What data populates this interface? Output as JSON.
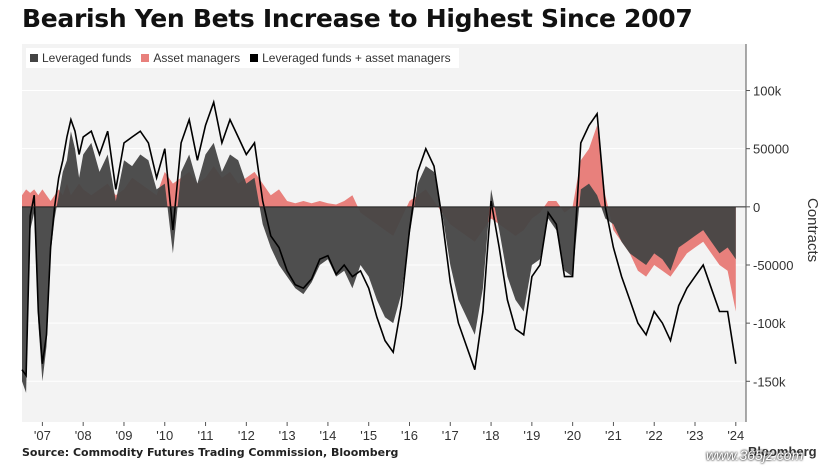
{
  "chart_data": {
    "type": "area",
    "title": "Bearish Yen Bets Increase to Highest Since 2007",
    "ylabel": "Contracts",
    "ylim": [
      -185000,
      140000
    ],
    "xlim": [
      2006.5,
      2024.25
    ],
    "yticks": [
      100000,
      50000,
      0,
      -50000,
      -100000,
      -150000
    ],
    "ytick_labels": [
      "100k",
      "50000",
      "0",
      "-50000",
      "-100k",
      "-150k"
    ],
    "xticks": [
      2007,
      2008,
      2009,
      2010,
      2011,
      2012,
      2013,
      2014,
      2015,
      2016,
      2017,
      2018,
      2019,
      2020,
      2021,
      2022,
      2023,
      2024
    ],
    "xtick_labels": [
      "'07",
      "'08",
      "'09",
      "'10",
      "'11",
      "'12",
      "'13",
      "'14",
      "'15",
      "'16",
      "'17",
      "'18",
      "'19",
      "'20",
      "'21",
      "'22",
      "'23",
      "'24"
    ],
    "legend_position": "top-left",
    "grid": true,
    "x": [
      2006.5,
      2006.6,
      2006.7,
      2006.8,
      2006.9,
      2007.0,
      2007.1,
      2007.2,
      2007.3,
      2007.4,
      2007.5,
      2007.6,
      2007.7,
      2007.8,
      2007.9,
      2008.0,
      2008.2,
      2008.4,
      2008.6,
      2008.8,
      2009.0,
      2009.2,
      2009.4,
      2009.6,
      2009.8,
      2010.0,
      2010.2,
      2010.4,
      2010.6,
      2010.8,
      2011.0,
      2011.2,
      2011.4,
      2011.6,
      2011.8,
      2012.0,
      2012.2,
      2012.4,
      2012.6,
      2012.8,
      2013.0,
      2013.2,
      2013.4,
      2013.6,
      2013.8,
      2014.0,
      2014.2,
      2014.4,
      2014.6,
      2014.8,
      2015.0,
      2015.2,
      2015.4,
      2015.6,
      2015.8,
      2016.0,
      2016.2,
      2016.4,
      2016.6,
      2016.8,
      2017.0,
      2017.2,
      2017.4,
      2017.6,
      2017.8,
      2018.0,
      2018.2,
      2018.4,
      2018.6,
      2018.8,
      2019.0,
      2019.2,
      2019.4,
      2019.6,
      2019.8,
      2020.0,
      2020.2,
      2020.4,
      2020.6,
      2020.8,
      2021.0,
      2021.2,
      2021.4,
      2021.6,
      2021.8,
      2022.0,
      2022.2,
      2022.4,
      2022.6,
      2022.8,
      2023.0,
      2023.2,
      2023.4,
      2023.6,
      2023.8,
      2024.0
    ],
    "series": [
      {
        "name": "Leveraged funds",
        "color": "#444444",
        "values": [
          -150000,
          -160000,
          -20000,
          -5000,
          -100000,
          -150000,
          -120000,
          -40000,
          -10000,
          10000,
          30000,
          40000,
          65000,
          50000,
          25000,
          45000,
          55000,
          30000,
          45000,
          5000,
          40000,
          35000,
          45000,
          40000,
          15000,
          20000,
          -40000,
          30000,
          45000,
          20000,
          45000,
          55000,
          30000,
          45000,
          40000,
          20000,
          25000,
          -15000,
          -35000,
          -50000,
          -60000,
          -70000,
          -75000,
          -65000,
          -50000,
          -45000,
          -60000,
          -55000,
          -70000,
          -50000,
          -60000,
          -80000,
          -95000,
          -100000,
          -75000,
          -25000,
          20000,
          35000,
          30000,
          -5000,
          -50000,
          -80000,
          -95000,
          -110000,
          -70000,
          15000,
          -20000,
          -60000,
          -80000,
          -90000,
          -50000,
          -45000,
          -10000,
          -20000,
          -55000,
          -60000,
          15000,
          20000,
          10000,
          -10000,
          -15000,
          -30000,
          -40000,
          -45000,
          -50000,
          -40000,
          -45000,
          -55000,
          -35000,
          -30000,
          -25000,
          -20000,
          -30000,
          -40000,
          -35000,
          -45000
        ]
      },
      {
        "name": "Asset managers",
        "color": "#e8807c",
        "values": [
          10000,
          15000,
          12000,
          15000,
          10000,
          15000,
          10000,
          5000,
          10000,
          15000,
          10000,
          20000,
          10000,
          15000,
          20000,
          15000,
          10000,
          15000,
          20000,
          10000,
          15000,
          25000,
          20000,
          15000,
          10000,
          30000,
          20000,
          25000,
          30000,
          20000,
          25000,
          35000,
          25000,
          30000,
          20000,
          25000,
          30000,
          20000,
          10000,
          15000,
          5000,
          3000,
          5000,
          3000,
          5000,
          3000,
          2000,
          5000,
          10000,
          -5000,
          -10000,
          -15000,
          -20000,
          -25000,
          -10000,
          5000,
          10000,
          15000,
          5000,
          -5000,
          -15000,
          -20000,
          -25000,
          -30000,
          -20000,
          -10000,
          -15000,
          -20000,
          -25000,
          -20000,
          -10000,
          -5000,
          5000,
          5000,
          -5000,
          0,
          40000,
          50000,
          70000,
          10000,
          -20000,
          -30000,
          -40000,
          -55000,
          -60000,
          -50000,
          -55000,
          -60000,
          -50000,
          -40000,
          -35000,
          -30000,
          -40000,
          -50000,
          -55000,
          -90000
        ]
      },
      {
        "name": "Leveraged funds + asset managers",
        "color": "#000000",
        "values": [
          -140000,
          -145000,
          -8000,
          10000,
          -90000,
          -135000,
          -110000,
          -35000,
          0,
          25000,
          40000,
          60000,
          75000,
          65000,
          45000,
          60000,
          65000,
          45000,
          65000,
          15000,
          55000,
          60000,
          65000,
          55000,
          25000,
          50000,
          -20000,
          55000,
          75000,
          40000,
          70000,
          90000,
          55000,
          75000,
          60000,
          45000,
          55000,
          5000,
          -25000,
          -35000,
          -55000,
          -67000,
          -70000,
          -62000,
          -45000,
          -42000,
          -58000,
          -50000,
          -60000,
          -55000,
          -70000,
          -95000,
          -115000,
          -125000,
          -85000,
          -20000,
          30000,
          50000,
          35000,
          -10000,
          -65000,
          -100000,
          -120000,
          -140000,
          -90000,
          5000,
          -35000,
          -80000,
          -105000,
          -110000,
          -60000,
          -50000,
          -5000,
          -15000,
          -60000,
          -60000,
          55000,
          70000,
          80000,
          0,
          -35000,
          -60000,
          -80000,
          -100000,
          -110000,
          -90000,
          -100000,
          -115000,
          -85000,
          -70000,
          -60000,
          -50000,
          -70000,
          -90000,
          -90000,
          -135000
        ]
      }
    ]
  },
  "source": "Source: Commodity Futures Trading Commission, Bloomberg",
  "watermark": "Bloomberg",
  "site_mark": "www.365jz.com"
}
